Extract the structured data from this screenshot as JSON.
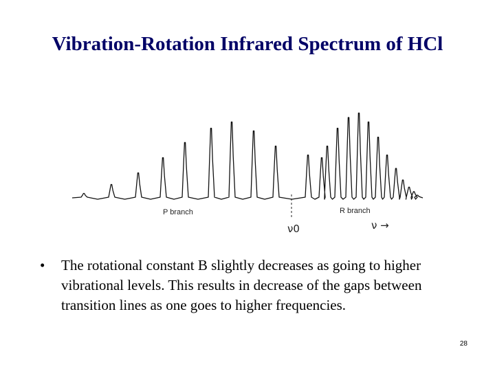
{
  "slide": {
    "title": "Vibration-Rotation Infrared Spectrum of HCl",
    "bullet_marker": "•",
    "bullet_text": "The rotational constant B slightly decreases as going to higher vibrational levels. This results in decrease of the gaps between transition lines as one goes to higher frequencies.",
    "page_number": "28"
  },
  "figure": {
    "p_branch_label": "P branch",
    "r_branch_label": "R branch",
    "nu0_label": "ν0",
    "nu_arrow_label": "ν →",
    "peaks": {
      "p_branch": [
        0.05,
        0.15,
        0.28,
        0.45,
        0.62,
        0.78,
        0.85,
        0.75,
        0.58,
        0.48
      ],
      "r_branch": [
        0.45,
        0.58,
        0.78,
        0.9,
        0.95,
        0.85,
        0.68,
        0.48,
        0.33,
        0.2,
        0.12,
        0.07,
        0.03
      ]
    }
  }
}
